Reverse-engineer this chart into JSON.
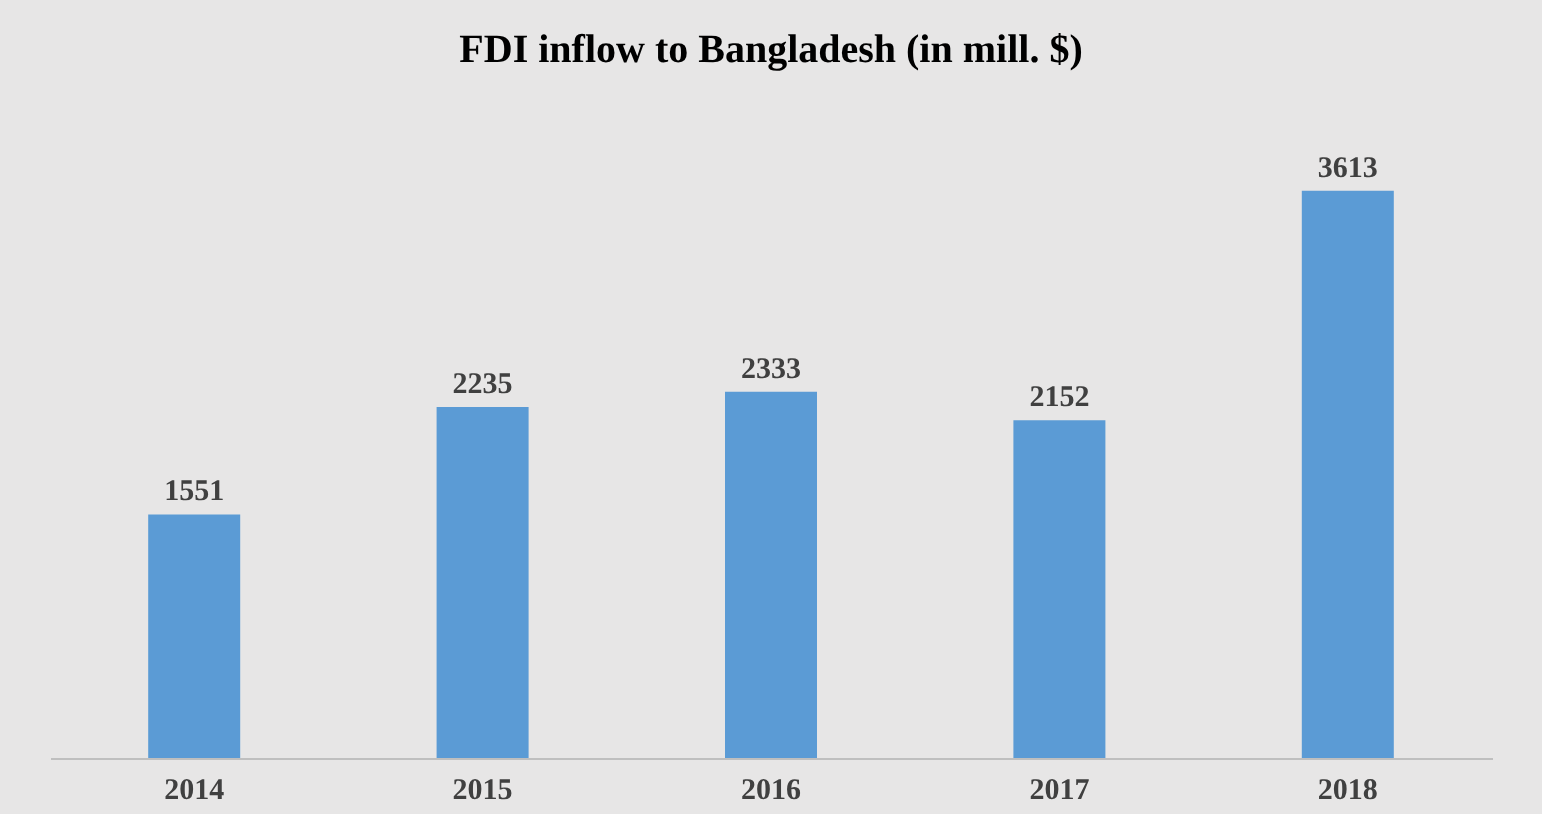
{
  "chart_data": {
    "type": "bar",
    "title": "FDI inflow to Bangladesh (in mill. $)",
    "categories": [
      "2014",
      "2015",
      "2016",
      "2017",
      "2018"
    ],
    "values": [
      1551,
      2235,
      2333,
      2152,
      3613
    ],
    "color": "#5b9bd5",
    "data_labels": true
  }
}
